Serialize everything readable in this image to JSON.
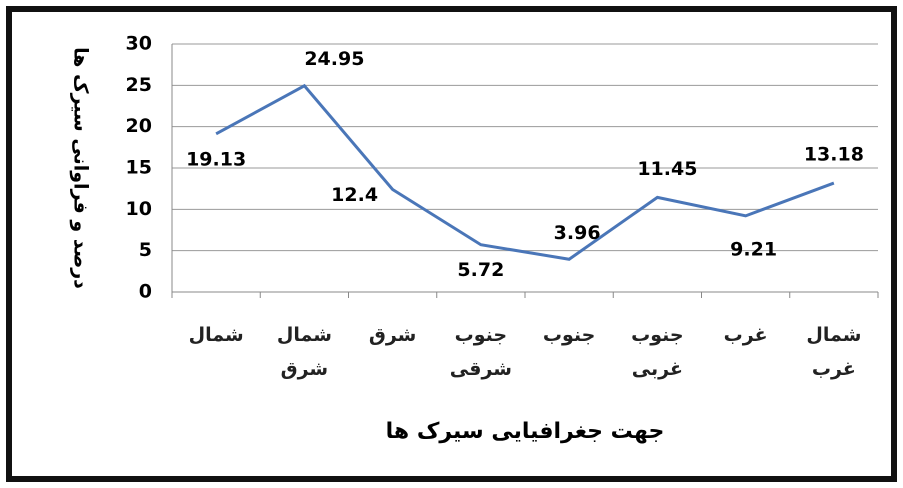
{
  "chart_data": {
    "type": "line",
    "y_axis_label": "درصد و فراوانی سیرک ها",
    "x_axis_label": "جهت جغرافیایی سیرک ها",
    "categories": [
      "شمال",
      "شمال شرق",
      "شرق",
      "جنوب شرقی",
      "جنوب",
      "جنوب غربی",
      "غرب",
      "شمال غرب"
    ],
    "series": [
      {
        "name": "درصد",
        "color": "#4a76b8",
        "values": [
          19.13,
          24.95,
          12.4,
          5.72,
          3.96,
          11.45,
          9.21,
          13.18
        ]
      }
    ],
    "ylim": [
      0,
      30
    ],
    "yticks": [
      0,
      5,
      10,
      15,
      20,
      25,
      30
    ],
    "grid": true
  }
}
